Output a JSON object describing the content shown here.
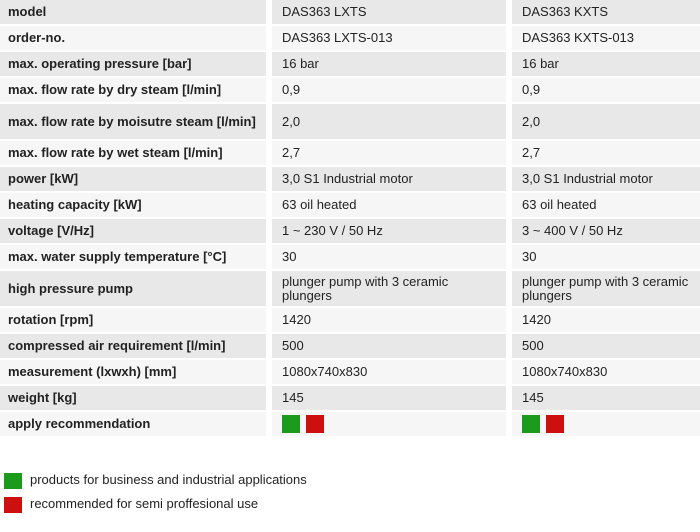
{
  "header": {
    "label": "model",
    "col1": "DAS363 LXTS",
    "col2": "DAS363 KXTS"
  },
  "rows": [
    {
      "label": "order-no.",
      "col1": "DAS363 LXTS-013",
      "col2": "DAS363 KXTS-013"
    },
    {
      "label": "max. operating pressure [bar]",
      "col1": "16 bar",
      "col2": "16 bar"
    },
    {
      "label": "max. flow rate by dry steam [l/min]",
      "col1": "0,9",
      "col2": "0,9"
    },
    {
      "label": "max. flow rate by moisutre steam [l/min]",
      "col1": "2,0",
      "col2": "2,0"
    },
    {
      "label": "max. flow rate by wet steam [l/min]",
      "col1": "2,7",
      "col2": "2,7"
    },
    {
      "label": "power [kW]",
      "col1": "3,0 S1 Industrial motor",
      "col2": "3,0 S1 Industrial motor"
    },
    {
      "label": "heating capacity [kW]",
      "col1": "63 oil heated",
      "col2": "63 oil heated"
    },
    {
      "label": "voltage [V/Hz]",
      "col1": "1 ~ 230 V / 50 Hz",
      "col2": "3 ~ 400 V / 50 Hz"
    },
    {
      "label": "max. water supply temperature [°C]",
      "col1": "30",
      "col2": "30"
    },
    {
      "label": "high pressure pump",
      "col1": "plunger pump with 3 ceramic plungers",
      "col2": "plunger pump with 3 ceramic plungers"
    },
    {
      "label": "rotation [rpm]",
      "col1": "1420",
      "col2": "1420"
    },
    {
      "label": "compressed air requirement [l/min]",
      "col1": "500",
      "col2": "500"
    },
    {
      "label": "measurement (lxwxh) [mm]",
      "col1": "1080x740x830",
      "col2": "1080x740x830"
    },
    {
      "label": "weight [kg]",
      "col1": "145",
      "col2": "145"
    }
  ],
  "recommendation": {
    "label": "apply recommendation"
  },
  "legend": {
    "green_text": "products for business and industrial applications",
    "red_text": "recommended for semi proffesional use"
  },
  "colors": {
    "green": "#1c9a1c",
    "red": "#cc1010",
    "row_dark": "#e8e8e8",
    "row_light": "#f6f6f6"
  }
}
